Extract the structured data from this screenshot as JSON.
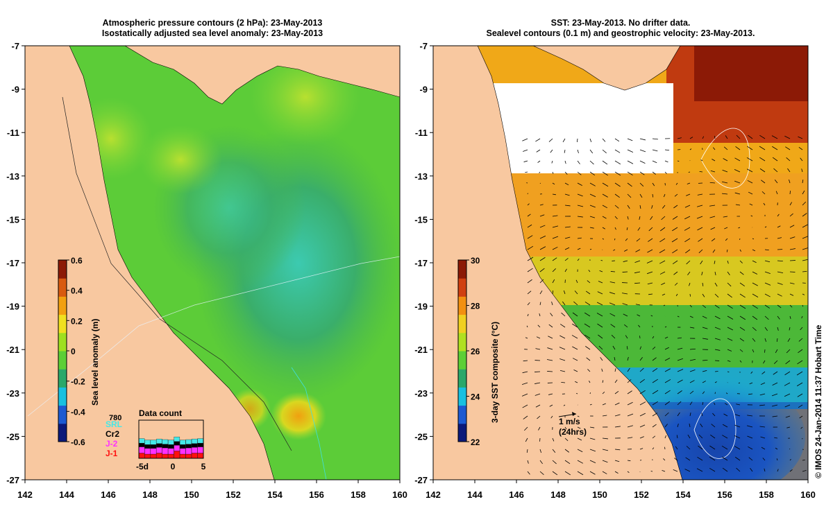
{
  "left_panel": {
    "title_line1": "Atmospheric pressure contours (2 hPa): 23-May-2013",
    "title_line2": "Isostatically adjusted sea level anomaly: 23-May-2013",
    "colorbar": {
      "label": "Sea level anomaly (m)",
      "ticks": [
        "0.6",
        "0.4",
        "0.2",
        "0",
        "-0.2",
        "-0.4",
        "-0.6"
      ],
      "colors": [
        "#0b1a7a",
        "#1c5ad2",
        "#18c0e0",
        "#2aa86a",
        "#5ccf36",
        "#9ee020",
        "#f0e020",
        "#f2a010",
        "#d85a10",
        "#8c1a06"
      ]
    },
    "data_count": {
      "title": "Data count",
      "max_label": "780",
      "series": [
        {
          "name": "SRL",
          "color": "#44e8e8"
        },
        {
          "name": "Cr2",
          "color": "#000000"
        },
        {
          "name": "J-2",
          "color": "#ff30ff"
        },
        {
          "name": "J-1",
          "color": "#ff1010"
        }
      ],
      "x_ticks": [
        "-5d",
        "0",
        "5"
      ]
    }
  },
  "right_panel": {
    "title_line1": "SST: 23-May-2013. No drifter data.",
    "title_line2": "Sealevel contours (0.1 m) and geostrophic velocity: 23-May-2013.",
    "colorbar": {
      "label": "3-day SST composite (°C)",
      "ticks": [
        "30",
        "28",
        "26",
        "24",
        "22"
      ],
      "colors": [
        "#0b1a7a",
        "#1c5ad2",
        "#18c0e0",
        "#2aa86a",
        "#5ccf36",
        "#b0e020",
        "#f0d020",
        "#f29010",
        "#d04010",
        "#8c1a06"
      ]
    },
    "velocity_scale": {
      "label": "1 m/s",
      "sublabel": "(24hrs)"
    }
  },
  "axes": {
    "x_ticks": [
      "142",
      "144",
      "146",
      "148",
      "150",
      "152",
      "154",
      "156",
      "158",
      "160"
    ],
    "y_ticks": [
      "-7",
      "-9",
      "-11",
      "-13",
      "-15",
      "-17",
      "-19",
      "-21",
      "-23",
      "-25",
      "-27"
    ]
  },
  "credit": "© IMOS 24-Jan-2014 11:37 Hobart Time",
  "colors": {
    "land": "#f8c8a0",
    "ocean_left": "#66cc33",
    "ocean_right": "#f0a818"
  }
}
